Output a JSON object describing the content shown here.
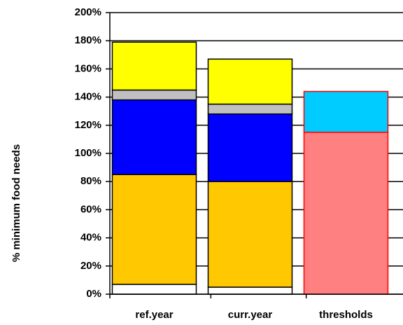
{
  "chart_data": {
    "type": "stacked_bar",
    "y_label": "% minimum food needs",
    "categories": [
      "ref.year",
      "curr.year",
      "thresholds"
    ],
    "series": [
      {
        "color": "#ffffff",
        "values": [
          7,
          5,
          null
        ]
      },
      {
        "color": "#ffc800",
        "values": [
          78,
          75,
          null
        ]
      },
      {
        "color": "#0000ff",
        "values": [
          53,
          48,
          null
        ]
      },
      {
        "color": "#c0c0c0",
        "values": [
          7,
          7,
          null
        ]
      },
      {
        "color": "#ffff00",
        "values": [
          34,
          32,
          null
        ]
      },
      {
        "color": "#ff8080",
        "values": [
          null,
          null,
          115
        ]
      },
      {
        "color": "#00ccff",
        "values": [
          null,
          null,
          29
        ]
      }
    ],
    "edge_colors": [
      "#000000",
      "#000000",
      "#ff0000"
    ],
    "ylim": [
      0,
      200
    ],
    "yticks": [
      {
        "value": 0,
        "label": "0%"
      },
      {
        "value": 20,
        "label": "20%"
      },
      {
        "value": 40,
        "label": "40%"
      },
      {
        "value": 60,
        "label": "60%"
      },
      {
        "value": 80,
        "label": "80%"
      },
      {
        "value": 100,
        "label": "100%"
      },
      {
        "value": 120,
        "label": "120%"
      },
      {
        "value": 140,
        "label": "140%"
      },
      {
        "value": 160,
        "label": "160%"
      },
      {
        "value": 180,
        "label": "180%"
      },
      {
        "value": 200,
        "label": "200%"
      }
    ],
    "grid": true
  }
}
